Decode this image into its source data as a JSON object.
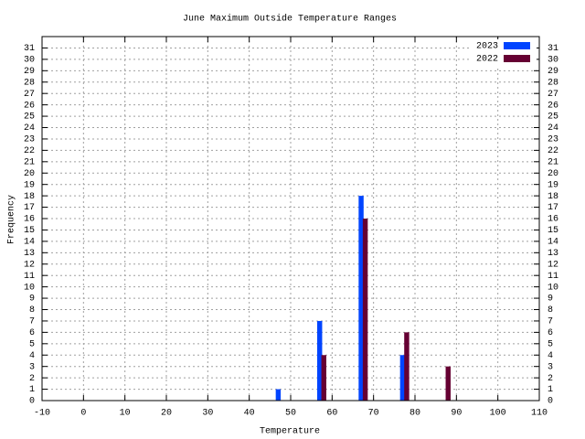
{
  "chart_data": {
    "type": "bar",
    "title": "June Maximum Outside Temperature Ranges",
    "x_label": "Temperature",
    "y_label": "Frequency",
    "series": [
      {
        "name": "2023",
        "color": "#0044ff",
        "x": [
          47,
          57,
          67,
          77
        ],
        "values": [
          1,
          7,
          18,
          4
        ]
      },
      {
        "name": "2022",
        "color": "#660033",
        "x": [
          58,
          68,
          78,
          88
        ],
        "values": [
          4,
          16,
          6,
          3
        ]
      }
    ],
    "xlim": [
      -10,
      110
    ],
    "xticks": [
      -10,
      0,
      10,
      20,
      30,
      40,
      50,
      60,
      70,
      80,
      90,
      100,
      110
    ],
    "ylim": [
      0,
      32
    ],
    "yticks": [
      0,
      1,
      2,
      3,
      4,
      5,
      6,
      7,
      8,
      9,
      10,
      11,
      12,
      13,
      14,
      15,
      16,
      17,
      18,
      19,
      20,
      21,
      22,
      23,
      24,
      25,
      26,
      27,
      28,
      29,
      30,
      31
    ],
    "y2lim": [
      0,
      32
    ],
    "y2ticks": [
      0,
      1,
      2,
      3,
      4,
      5,
      6,
      7,
      8,
      9,
      10,
      11,
      12,
      13,
      14,
      15,
      16,
      17,
      18,
      19,
      20,
      21,
      22,
      23,
      24,
      25,
      26,
      27,
      28,
      29,
      30,
      31
    ],
    "grid": true,
    "legend": "top-right"
  }
}
